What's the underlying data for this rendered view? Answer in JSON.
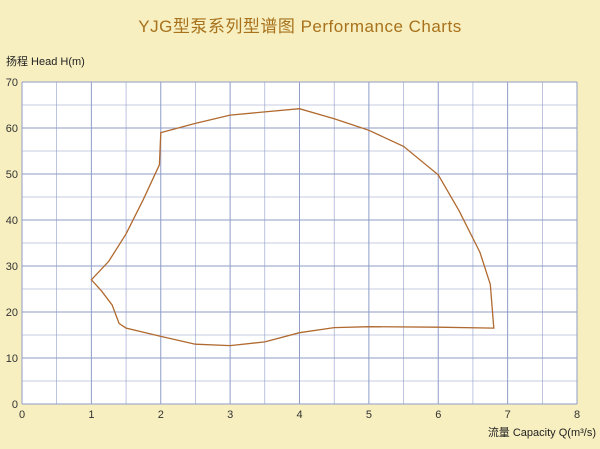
{
  "chart_data": {
    "type": "line",
    "title": "YJG型泵系列型谱图    Performance Charts",
    "ylabel": "扬程 Head    H(m)",
    "xlabel": "流量 Capacity    Q(m³/s)",
    "xlim": [
      0,
      8
    ],
    "ylim": [
      0,
      70
    ],
    "x_ticks": [
      "0",
      "1",
      "2",
      "3",
      "4",
      "5",
      "6",
      "7",
      "8"
    ],
    "y_ticks": [
      "0",
      "10",
      "20",
      "30",
      "40",
      "50",
      "60",
      "70"
    ],
    "grid": true,
    "series": [
      {
        "x": [
          1.0,
          1.25,
          1.5,
          1.75,
          1.98,
          2.0,
          2.5,
          3.0,
          3.5,
          4.0,
          4.5,
          5.0,
          5.5,
          6.0,
          6.3,
          6.6,
          6.75,
          6.8,
          6.0,
          5.0,
          4.5,
          4.0,
          3.5,
          3.0,
          2.5,
          2.0,
          1.5,
          1.4,
          1.3,
          1.15,
          1.0
        ],
        "y": [
          27,
          31,
          37,
          44.5,
          52,
          59,
          61,
          62.8,
          63.5,
          64.2,
          62,
          59.5,
          56,
          49.8,
          42,
          33,
          26,
          16.5,
          16.7,
          16.8,
          16.6,
          15.5,
          13.5,
          12.7,
          13,
          14.7,
          16.5,
          17.5,
          21.5,
          24.5,
          27
        ]
      }
    ],
    "line_color": "#b06a30",
    "grid_color": "#8f9dc8"
  }
}
